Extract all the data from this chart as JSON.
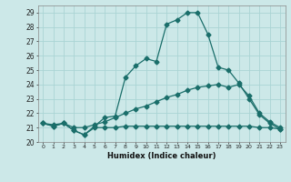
{
  "xlabel": "Humidex (Indice chaleur)",
  "ylabel": "",
  "bg_color": "#cce8e8",
  "grid_color": "#aad4d4",
  "line_color": "#1a6e6a",
  "xlim": [
    -0.5,
    23.5
  ],
  "ylim": [
    20.0,
    29.5
  ],
  "yticks": [
    20,
    21,
    22,
    23,
    24,
    25,
    26,
    27,
    28,
    29
  ],
  "xticks": [
    0,
    1,
    2,
    3,
    4,
    5,
    6,
    7,
    8,
    9,
    10,
    11,
    12,
    13,
    14,
    15,
    16,
    17,
    18,
    19,
    20,
    21,
    22,
    23
  ],
  "series1_x": [
    0,
    1,
    2,
    3,
    4,
    5,
    6,
    7,
    8,
    9,
    10,
    11,
    12,
    13,
    14,
    15,
    16,
    17,
    18,
    19,
    20,
    21,
    22,
    23
  ],
  "series1_y": [
    21.3,
    21.1,
    21.3,
    20.8,
    20.5,
    21.1,
    21.7,
    21.8,
    24.5,
    25.3,
    25.8,
    25.6,
    28.2,
    28.5,
    29.0,
    29.0,
    27.5,
    25.2,
    25.0,
    24.1,
    23.0,
    21.9,
    21.3,
    20.9
  ],
  "series2_x": [
    0,
    1,
    2,
    3,
    4,
    5,
    6,
    7,
    8,
    9,
    10,
    11,
    12,
    13,
    14,
    15,
    16,
    17,
    18,
    19,
    20,
    21,
    22,
    23
  ],
  "series2_y": [
    21.3,
    21.2,
    21.3,
    21.0,
    21.0,
    21.2,
    21.4,
    21.7,
    22.0,
    22.3,
    22.5,
    22.8,
    23.1,
    23.3,
    23.6,
    23.8,
    23.9,
    24.0,
    23.8,
    24.0,
    23.2,
    22.0,
    21.4,
    21.0
  ],
  "series3_x": [
    0,
    1,
    2,
    3,
    4,
    5,
    6,
    7,
    8,
    9,
    10,
    11,
    12,
    13,
    14,
    15,
    16,
    17,
    18,
    19,
    20,
    21,
    22,
    23
  ],
  "series3_y": [
    21.3,
    21.1,
    21.3,
    20.8,
    20.5,
    21.0,
    21.0,
    21.0,
    21.1,
    21.1,
    21.1,
    21.1,
    21.1,
    21.1,
    21.1,
    21.1,
    21.1,
    21.1,
    21.1,
    21.1,
    21.1,
    21.0,
    21.0,
    20.9
  ]
}
